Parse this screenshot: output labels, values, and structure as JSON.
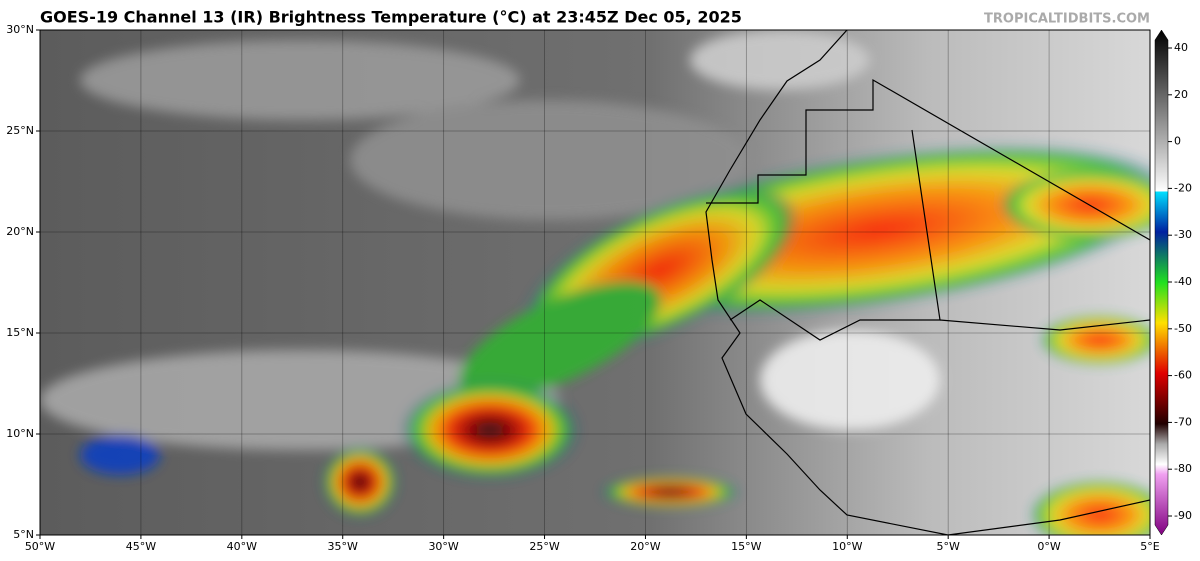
{
  "header": {
    "title": "GOES-19 Channel 13 (IR) Brightness Temperature (°C) at 23:45Z Dec 05, 2025",
    "source": "TROPICALTIDBITS.COM"
  },
  "map": {
    "xlim": [
      -50,
      5
    ],
    "ylim": [
      5,
      30
    ],
    "xticks": [
      {
        "value": -50,
        "label": "50°W"
      },
      {
        "value": -45,
        "label": "45°W"
      },
      {
        "value": -40,
        "label": "40°W"
      },
      {
        "value": -35,
        "label": "35°W"
      },
      {
        "value": -30,
        "label": "30°W"
      },
      {
        "value": -25,
        "label": "25°W"
      },
      {
        "value": -20,
        "label": "20°W"
      },
      {
        "value": -15,
        "label": "15°W"
      },
      {
        "value": -10,
        "label": "10°W"
      },
      {
        "value": -5,
        "label": "5°W"
      },
      {
        "value": 0,
        "label": "0°W"
      },
      {
        "value": 5,
        "label": "5°E"
      }
    ],
    "yticks": [
      {
        "value": 5,
        "label": "5°N"
      },
      {
        "value": 10,
        "label": "10°N"
      },
      {
        "value": 15,
        "label": "15°N"
      },
      {
        "value": 20,
        "label": "20°N"
      },
      {
        "value": 25,
        "label": "25°N"
      },
      {
        "value": 30,
        "label": "30°N"
      }
    ]
  },
  "colorbar": {
    "ticks": [
      40,
      20,
      0,
      -20,
      -30,
      -40,
      -50,
      -60,
      -70,
      -80,
      -90
    ]
  }
}
